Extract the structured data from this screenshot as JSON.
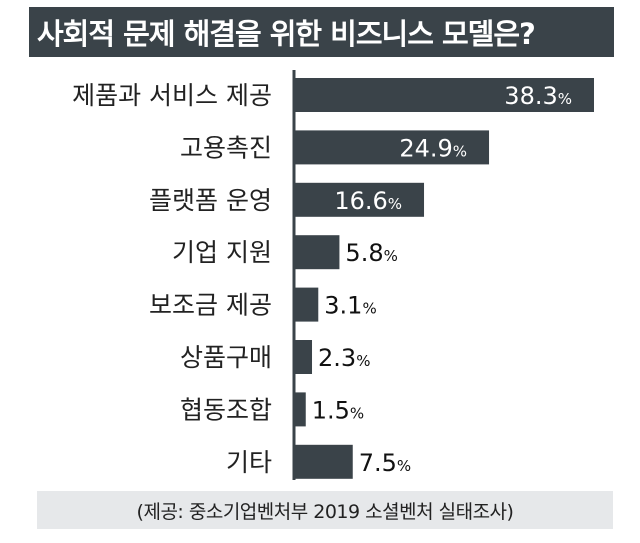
{
  "title": "사회적 문제 해결을 위한 비즈니스 모델은?",
  "source": "(제공: 중소기업벤처부 2019 소셜벤처 실태조사)",
  "colors": {
    "bar": "#3a4349",
    "axis": "#3a4349",
    "header": "#3a4349",
    "footer_bg": "#e6e8ea"
  },
  "chart_data": {
    "type": "bar",
    "orientation": "horizontal",
    "title": "사회적 문제 해결을 위한 비즈니스 모델은?",
    "categories": [
      "제품과 서비스 제공",
      "고용촉진",
      "플랫폼 운영",
      "기업 지원",
      "보조금 제공",
      "상품구매",
      "협동조합",
      "기타"
    ],
    "values": [
      38.3,
      24.9,
      16.6,
      5.8,
      3.1,
      2.3,
      1.5,
      7.5
    ],
    "labels": [
      "38.3",
      "24.9",
      "16.6",
      "5.8",
      "3.1",
      "2.3",
      "1.5",
      "7.5"
    ],
    "unit": "%",
    "xlim": [
      0,
      38.3
    ],
    "grid": false,
    "legend": "none"
  }
}
